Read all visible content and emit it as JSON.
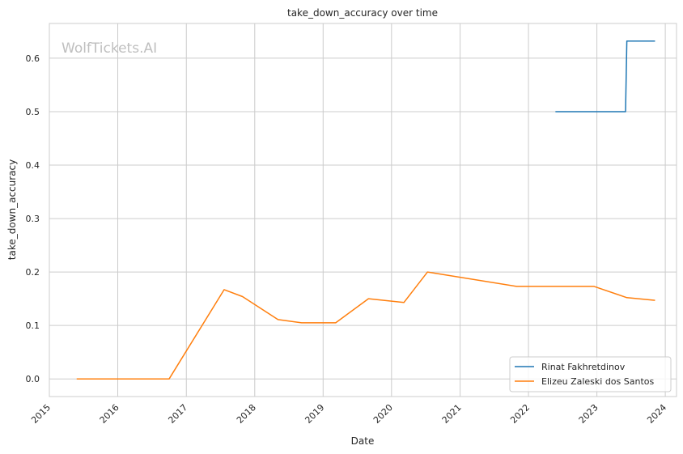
{
  "chart_data": {
    "type": "line",
    "title": "take_down_accuracy over time",
    "xlabel": "Date",
    "ylabel": "take_down_accuracy",
    "watermark": "WolfTickets.AI",
    "x_ticks": [
      "2015",
      "2016",
      "2017",
      "2018",
      "2019",
      "2020",
      "2021",
      "2022",
      "2023",
      "2024"
    ],
    "y_ticks": [
      "0.0",
      "0.1",
      "0.2",
      "0.3",
      "0.4",
      "0.5",
      "0.6"
    ],
    "xlim": [
      "2015-01-01",
      "2024-03-01"
    ],
    "ylim": [
      -0.033,
      0.665
    ],
    "grid": true,
    "legend_position": "lower-right",
    "series": [
      {
        "name": "Rinat Fakhretdinov",
        "color": "#1f77b4",
        "points": [
          {
            "x": "2022-05-28",
            "y": 0.5
          },
          {
            "x": "2023-06-03",
            "y": 0.5
          },
          {
            "x": "2023-06-10",
            "y": 0.632
          },
          {
            "x": "2023-11-04",
            "y": 0.632
          }
        ]
      },
      {
        "name": "Elizeu Zaleski dos Santos",
        "color": "#ff7f0e",
        "points": [
          {
            "x": "2015-05-30",
            "y": 0.0
          },
          {
            "x": "2016-10-01",
            "y": 0.0
          },
          {
            "x": "2017-07-22",
            "y": 0.167
          },
          {
            "x": "2017-10-28",
            "y": 0.154
          },
          {
            "x": "2018-05-05",
            "y": 0.111
          },
          {
            "x": "2018-09-08",
            "y": 0.105
          },
          {
            "x": "2019-03-09",
            "y": 0.105
          },
          {
            "x": "2019-08-31",
            "y": 0.15
          },
          {
            "x": "2020-03-07",
            "y": 0.143
          },
          {
            "x": "2020-07-11",
            "y": 0.2
          },
          {
            "x": "2021-10-30",
            "y": 0.173
          },
          {
            "x": "2022-12-17",
            "y": 0.173
          },
          {
            "x": "2023-06-10",
            "y": 0.152
          },
          {
            "x": "2023-11-04",
            "y": 0.147
          }
        ]
      }
    ]
  }
}
